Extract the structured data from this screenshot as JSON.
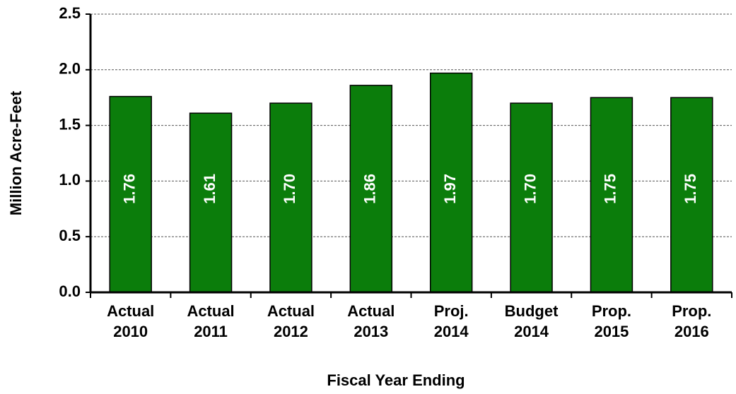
{
  "chart_data": {
    "type": "bar",
    "categories": [
      [
        "Actual",
        "2010"
      ],
      [
        "Actual",
        "2011"
      ],
      [
        "Actual",
        "2012"
      ],
      [
        "Actual",
        "2013"
      ],
      [
        "Proj.",
        "2014"
      ],
      [
        "Budget",
        "2014"
      ],
      [
        "Prop.",
        "2015"
      ],
      [
        "Prop.",
        "2016"
      ]
    ],
    "values": [
      1.76,
      1.61,
      1.7,
      1.86,
      1.97,
      1.7,
      1.75,
      1.75
    ],
    "value_labels": [
      "1.76",
      "1.61",
      "1.70",
      "1.86",
      "1.97",
      "1.70",
      "1.75",
      "1.75"
    ],
    "color": "#0b7d0b",
    "ylim": [
      0,
      2.5
    ],
    "yticks": [
      {
        "value": 0,
        "label": "0.0"
      },
      0.5,
      {
        "value": 1,
        "label": "1.0"
      },
      1.5,
      {
        "value": 2,
        "label": "2.0"
      },
      2.5
    ],
    "ylabel": "Million Acre-Feet",
    "xlabel": "Fiscal Year Ending",
    "grid": true
  }
}
